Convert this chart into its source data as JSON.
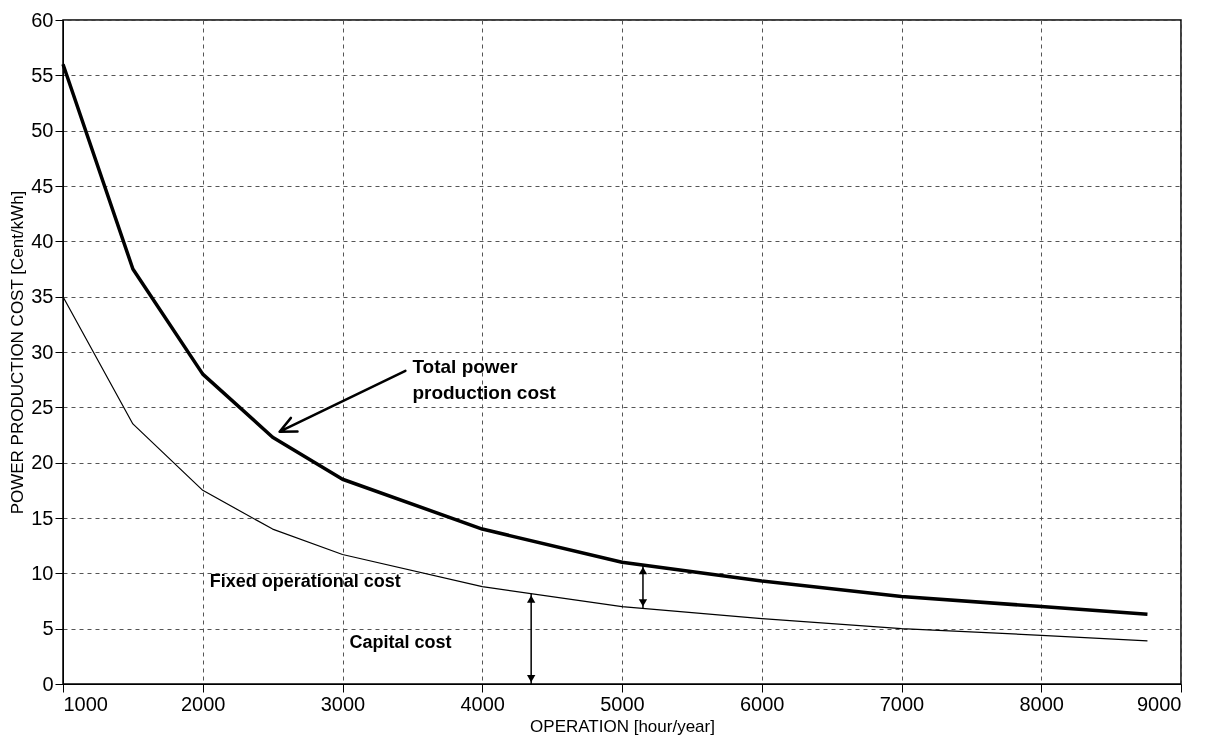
{
  "chart_data": {
    "type": "line",
    "xlabel": "OPERATION [hour/year]",
    "ylabel": "POWER PRODUCTION COST [Cent/kWh]",
    "x": [
      1000,
      1500,
      2000,
      2500,
      3000,
      4000,
      5000,
      6000,
      7000,
      8000,
      8760
    ],
    "series": [
      {
        "color": "#000000",
        "values": [
          56,
          37.5,
          28,
          22.3,
          18.5,
          14,
          11,
          9.3,
          7.9,
          7,
          6.3
        ]
      },
      {
        "color": "#000000",
        "values": [
          35,
          23.5,
          17.5,
          14,
          11.7,
          8.8,
          7,
          5.9,
          5,
          4.4,
          3.9
        ]
      }
    ],
    "xlim": [
      1000,
      9000
    ],
    "xticks": [
      1000,
      2000,
      3000,
      4000,
      5000,
      6000,
      7000,
      8000,
      9000
    ],
    "ylim": [
      0,
      60
    ],
    "yticks": [
      0,
      5,
      10,
      15,
      20,
      25,
      30,
      35,
      40,
      45,
      50,
      55,
      60
    ],
    "grid": true,
    "line_style": "solid",
    "marker": "none",
    "annotations": [
      "Total power production cost",
      "Fixed operational cost",
      "Capital cost"
    ]
  }
}
